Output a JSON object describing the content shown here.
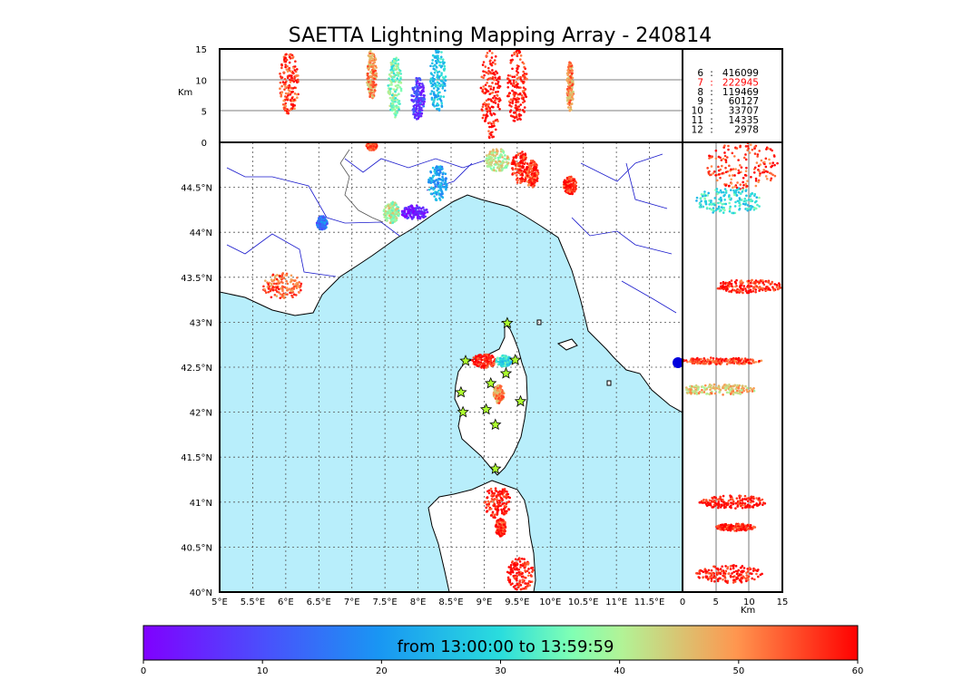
{
  "title": "SAETTA Lightning Mapping Array - 240814",
  "colorbar": {
    "label": "from 13:00:00 to 13:59:59",
    "min": 0,
    "max": 60,
    "ticks": [
      "0",
      "10",
      "20",
      "30",
      "40",
      "50",
      "60"
    ],
    "colormap": "rainbow"
  },
  "altitude_axis": {
    "label": "Km",
    "ticks": [
      "0",
      "5",
      "10",
      "15"
    ]
  },
  "lon_axis_ticks": [
    "5°E",
    "5.5°E",
    "6°E",
    "6.5°E",
    "7°E",
    "7.5°E",
    "8°E",
    "8.5°E",
    "9°E",
    "9.5°E",
    "10°E",
    "10.5°E",
    "11°E",
    "11.5°E"
  ],
  "lat_axis_ticks": [
    "40°N",
    "40.5°N",
    "41°N",
    "41.5°N",
    "42°N",
    "42.5°N",
    "43°N",
    "43.5°N",
    "44°N",
    "44.5°N"
  ],
  "colors": {
    "sea": "#b8eefb",
    "land": "#ffffff",
    "coast": "#000000",
    "rivers": "#1a1acc",
    "highlight": "#ff0000",
    "station": "#adff2f"
  },
  "stats": [
    {
      "label": "6",
      "count": "416099",
      "highlight": false
    },
    {
      "label": "7",
      "count": "222945",
      "highlight": true
    },
    {
      "label": "8",
      "count": "119469",
      "highlight": false
    },
    {
      "label": "9",
      "count": "60127",
      "highlight": false
    },
    {
      "label": "10",
      "count": "33707",
      "highlight": false
    },
    {
      "label": "11",
      "count": "14335",
      "highlight": false
    },
    {
      "label": "12",
      "count": "2978",
      "highlight": false
    }
  ],
  "stations": [
    {
      "lon": 9.35,
      "lat": 42.99
    },
    {
      "lon": 8.72,
      "lat": 42.57
    },
    {
      "lon": 9.47,
      "lat": 42.58
    },
    {
      "lon": 9.33,
      "lat": 42.43
    },
    {
      "lon": 9.1,
      "lat": 42.32
    },
    {
      "lon": 8.65,
      "lat": 42.22
    },
    {
      "lon": 9.55,
      "lat": 42.12
    },
    {
      "lon": 9.03,
      "lat": 42.03
    },
    {
      "lon": 8.68,
      "lat": 42.0
    },
    {
      "lon": 9.17,
      "lat": 41.86
    },
    {
      "lon": 9.17,
      "lat": 41.37
    }
  ],
  "storm_cells": [
    {
      "lon": 5.95,
      "lat": 43.4,
      "rx": 0.3,
      "ry": 0.15,
      "t": 54
    },
    {
      "lon": 6.55,
      "lat": 44.1,
      "rx": 0.08,
      "ry": 0.08,
      "t": 15
    },
    {
      "lon": 7.6,
      "lat": 44.22,
      "rx": 0.12,
      "ry": 0.12,
      "t": 40
    },
    {
      "lon": 7.95,
      "lat": 44.22,
      "rx": 0.2,
      "ry": 0.08,
      "t": 3
    },
    {
      "lon": 8.3,
      "lat": 44.55,
      "rx": 0.14,
      "ry": 0.2,
      "t": 22
    },
    {
      "lon": 7.3,
      "lat": 44.96,
      "rx": 0.08,
      "ry": 0.05,
      "t": 55
    },
    {
      "lon": 9.2,
      "lat": 44.8,
      "rx": 0.18,
      "ry": 0.13,
      "t": 42
    },
    {
      "lon": 9.55,
      "lat": 44.72,
      "rx": 0.14,
      "ry": 0.18,
      "t": 58
    },
    {
      "lon": 9.72,
      "lat": 44.65,
      "rx": 0.1,
      "ry": 0.15,
      "t": 56
    },
    {
      "lon": 10.3,
      "lat": 44.52,
      "rx": 0.1,
      "ry": 0.1,
      "t": 58
    },
    {
      "lon": 9.0,
      "lat": 42.57,
      "rx": 0.18,
      "ry": 0.08,
      "t": 59
    },
    {
      "lon": 9.3,
      "lat": 42.57,
      "rx": 0.12,
      "ry": 0.06,
      "t": 30
    },
    {
      "lon": 9.22,
      "lat": 42.2,
      "rx": 0.08,
      "ry": 0.1,
      "t": 50
    },
    {
      "lon": 9.2,
      "lat": 41.0,
      "rx": 0.2,
      "ry": 0.18,
      "t": 59
    },
    {
      "lon": 9.25,
      "lat": 40.72,
      "rx": 0.08,
      "ry": 0.1,
      "t": 58
    },
    {
      "lon": 9.55,
      "lat": 40.2,
      "rx": 0.2,
      "ry": 0.18,
      "t": 59
    }
  ],
  "top_panel_cells": [
    {
      "lon": 6.05,
      "alt": 9.5,
      "w": 0.3,
      "h": 10,
      "t": 56
    },
    {
      "lon": 7.3,
      "alt": 11,
      "w": 0.15,
      "h": 8,
      "t": 50
    },
    {
      "lon": 7.65,
      "alt": 9,
      "w": 0.2,
      "h": 10,
      "t": 36
    },
    {
      "lon": 8.0,
      "alt": 7,
      "w": 0.2,
      "h": 7,
      "t": 8
    },
    {
      "lon": 8.3,
      "alt": 10,
      "w": 0.25,
      "h": 10,
      "t": 26
    },
    {
      "lon": 9.1,
      "alt": 8,
      "w": 0.3,
      "h": 15,
      "t": 59
    },
    {
      "lon": 9.5,
      "alt": 9,
      "w": 0.3,
      "h": 12,
      "t": 58
    },
    {
      "lon": 10.3,
      "alt": 9,
      "w": 0.1,
      "h": 8,
      "t": 50
    }
  ],
  "side_panel_cells": [
    {
      "lat": 44.75,
      "alt": 9,
      "w": 11,
      "h": 0.55,
      "t": 56
    },
    {
      "lat": 44.35,
      "alt": 7,
      "w": 10,
      "h": 0.3,
      "t": 30
    },
    {
      "lat": 43.4,
      "alt": 10,
      "w": 10,
      "h": 0.15,
      "t": 58
    },
    {
      "lat": 42.57,
      "alt": 6,
      "w": 12,
      "h": 0.08,
      "t": 56
    },
    {
      "lat": 42.25,
      "alt": 5,
      "w": 12,
      "h": 0.12,
      "t": 46
    },
    {
      "lat": 41.0,
      "alt": 7.5,
      "w": 10,
      "h": 0.15,
      "t": 59
    },
    {
      "lat": 40.72,
      "alt": 8,
      "w": 6,
      "h": 0.08,
      "t": 59
    },
    {
      "lat": 40.2,
      "alt": 7,
      "w": 10,
      "h": 0.2,
      "t": 59
    }
  ]
}
